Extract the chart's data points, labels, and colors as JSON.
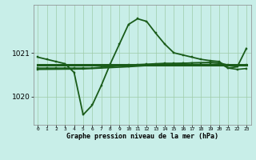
{
  "bg_color": "#c8eee8",
  "grid_color": "#9ecca8",
  "line_color": "#1a5c1a",
  "marker_color": "#1a5c1a",
  "xlabel": "Graphe pression niveau de la mer (hPa)",
  "ylabel_ticks": [
    1020,
    1021
  ],
  "xmin": -0.5,
  "xmax": 23.5,
  "ymin": 1019.35,
  "ymax": 1022.1,
  "series": [
    {
      "x": [
        0,
        1,
        2,
        3,
        4,
        5,
        6,
        7,
        8,
        9,
        10,
        11,
        12,
        13,
        14,
        15,
        16,
        17,
        18,
        19,
        20,
        21,
        22,
        23
      ],
      "y": [
        1020.9,
        1020.85,
        1020.8,
        1020.75,
        1020.55,
        1019.58,
        1019.8,
        1020.25,
        1020.75,
        1021.2,
        1021.65,
        1021.78,
        1021.72,
        1021.45,
        1021.2,
        1021.0,
        1020.95,
        1020.9,
        1020.85,
        1020.82,
        1020.8,
        1020.65,
        1020.68,
        1021.1
      ],
      "lw": 1.3,
      "has_marker": true
    },
    {
      "x": [
        0,
        1,
        2,
        3,
        4,
        5,
        6,
        7,
        8,
        9,
        10,
        11,
        12,
        13,
        14,
        15,
        16,
        17,
        18,
        19,
        20,
        21,
        22,
        23
      ],
      "y": [
        1020.72,
        1020.72,
        1020.72,
        1020.72,
        1020.72,
        1020.72,
        1020.72,
        1020.72,
        1020.72,
        1020.72,
        1020.72,
        1020.72,
        1020.72,
        1020.72,
        1020.72,
        1020.72,
        1020.72,
        1020.72,
        1020.72,
        1020.72,
        1020.72,
        1020.72,
        1020.72,
        1020.72
      ],
      "lw": 2.2,
      "has_marker": false
    },
    {
      "x": [
        0,
        1,
        2,
        3,
        4,
        5,
        6,
        7,
        8,
        9,
        10,
        11,
        12,
        13,
        14,
        15,
        16,
        17,
        18,
        19,
        20,
        21,
        22,
        23
      ],
      "y": [
        1020.65,
        1020.65,
        1020.65,
        1020.65,
        1020.65,
        1020.65,
        1020.65,
        1020.67,
        1020.68,
        1020.7,
        1020.72,
        1020.73,
        1020.74,
        1020.75,
        1020.76,
        1020.76,
        1020.76,
        1020.77,
        1020.77,
        1020.77,
        1020.76,
        1020.65,
        1020.62,
        1020.64
      ],
      "lw": 1.2,
      "has_marker": true
    },
    {
      "x": [
        0,
        5,
        10,
        13,
        16,
        19,
        20,
        21,
        22,
        23
      ],
      "y": [
        1020.62,
        1020.63,
        1020.68,
        1020.72,
        1020.76,
        1020.78,
        1020.77,
        1020.72,
        1020.7,
        1020.72
      ],
      "lw": 1.2,
      "has_marker": true
    }
  ]
}
